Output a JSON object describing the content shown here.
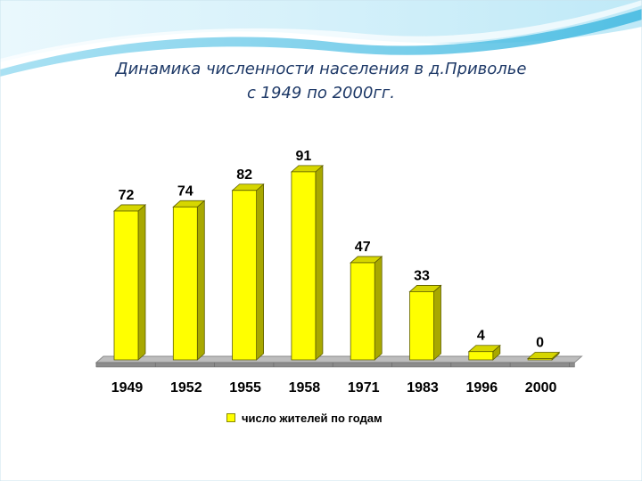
{
  "title": {
    "line1": "Динамика численности населения в д.Приволье",
    "line2": "с 1949 по 2000гг."
  },
  "chart_data": {
    "type": "bar",
    "categories": [
      "1949",
      "1952",
      "1955",
      "1958",
      "1971",
      "1983",
      "1996",
      "2000"
    ],
    "series": [
      {
        "name": "число жителей по годам",
        "values": [
          72,
          74,
          82,
          91,
          47,
          33,
          4,
          0
        ]
      }
    ],
    "data_labels": [
      "72",
      "74",
      "82",
      "91",
      "47",
      "33",
      "4",
      "0"
    ],
    "ylim": [
      0,
      100
    ],
    "grid": false,
    "legend_position": "bottom",
    "style": "3d"
  },
  "colors": {
    "bar_front": "#ffff00",
    "bar_side": "#a8a800",
    "bar_top": "#d6d600",
    "floor": "#8c8c8c",
    "title": "#1f3a68",
    "wave_light": "#d7f0fb",
    "wave_accent": "#6ccbe9"
  }
}
